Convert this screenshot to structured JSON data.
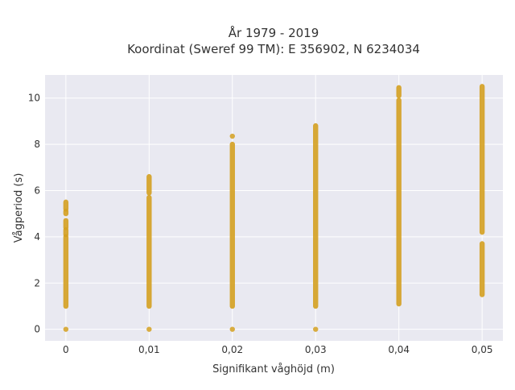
{
  "chart_data": {
    "type": "scatter",
    "title_line1": "År 1979 - 2019",
    "title_line2": "Koordinat (Sweref 99 TM): E 356902, N 6234034",
    "xlabel": "Signifikant våghöjd (m)",
    "ylabel": "Vågperiod (s)",
    "xlim": [
      -0.0025,
      0.0525
    ],
    "ylim": [
      -0.5,
      11
    ],
    "x_ticks": [
      0,
      0.01,
      0.02,
      0.03,
      0.04,
      0.05
    ],
    "x_tick_labels": [
      "0",
      "0,01",
      "0,02",
      "0,03",
      "0,04",
      "0,05"
    ],
    "y_ticks": [
      0,
      2,
      4,
      6,
      8,
      10
    ],
    "y_tick_labels": [
      "0",
      "2",
      "4",
      "6",
      "8",
      "10"
    ],
    "grid": true,
    "marker_color": "#d4a020",
    "plot_background": "#e9e9f1",
    "columns": [
      {
        "x": 0,
        "zero_point": true,
        "segments": [
          [
            1.0,
            4.0
          ],
          [
            4.1,
            4.3
          ],
          [
            4.4,
            4.7
          ],
          [
            5.0,
            5.1
          ],
          [
            5.2,
            5.5
          ]
        ]
      },
      {
        "x": 0.01,
        "zero_point": true,
        "segments": [
          [
            1.0,
            5.7
          ],
          [
            5.9,
            6.6
          ]
        ]
      },
      {
        "x": 0.02,
        "zero_point": true,
        "segments": [
          [
            1.0,
            8.0
          ],
          [
            8.35,
            8.35
          ]
        ]
      },
      {
        "x": 0.03,
        "zero_point": true,
        "segments": [
          [
            1.0,
            8.8
          ]
        ]
      },
      {
        "x": 0.04,
        "zero_point": false,
        "segments": [
          [
            1.1,
            9.9
          ],
          [
            10.1,
            10.45
          ]
        ]
      },
      {
        "x": 0.05,
        "zero_point": false,
        "segments": [
          [
            1.5,
            3.7
          ],
          [
            4.2,
            10.5
          ]
        ]
      }
    ]
  }
}
